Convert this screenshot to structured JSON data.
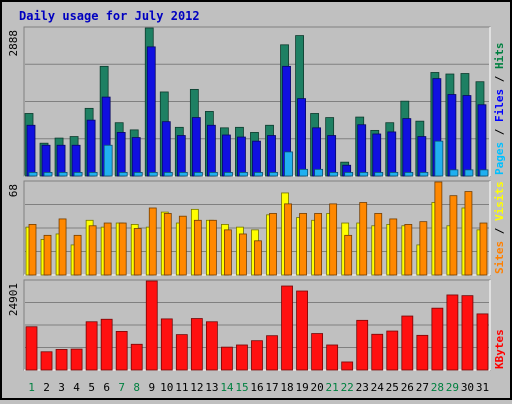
{
  "chart_data": {
    "title": "Daily usage for July 2012",
    "type": "bar",
    "days": [
      "1",
      "2",
      "3",
      "4",
      "5",
      "6",
      "7",
      "8",
      "9",
      "10",
      "11",
      "12",
      "13",
      "14",
      "15",
      "16",
      "17",
      "18",
      "19",
      "20",
      "21",
      "22",
      "23",
      "24",
      "25",
      "26",
      "27",
      "28",
      "29",
      "30",
      "31"
    ],
    "weekend_days": [
      "1",
      "7",
      "8",
      "14",
      "15",
      "21",
      "22",
      "28",
      "29"
    ],
    "panels": [
      {
        "id": "pages-files-hits",
        "max_label": "2888",
        "ymax": 2888,
        "label_parts": [
          {
            "text": "Pages",
            "color": "#00c0ff"
          },
          {
            "text": " / ",
            "color": "#000000"
          },
          {
            "text": "Files",
            "color": "#0000ff"
          },
          {
            "text": " / ",
            "color": "#000000"
          },
          {
            "text": "Hits",
            "color": "#008040"
          }
        ],
        "series": [
          {
            "name": "Hits",
            "color": "#1e8063",
            "values": [
              1220,
              640,
              740,
              770,
              1320,
              2140,
              1040,
              900,
              2888,
              1640,
              950,
              1690,
              1260,
              940,
              950,
              850,
              990,
              2560,
              2740,
              1220,
              1140,
              270,
              1150,
              890,
              1040,
              1460,
              1070,
              2020,
              1990,
              2000,
              1840
            ]
          },
          {
            "name": "Files",
            "color": "#1010e0",
            "values": [
              990,
              600,
              600,
              600,
              1090,
              1540,
              850,
              750,
              2520,
              1060,
              790,
              1140,
              990,
              800,
              760,
              680,
              790,
              2140,
              1510,
              940,
              790,
              210,
              1000,
              820,
              860,
              1120,
              770,
              1900,
              1590,
              1570,
              1390
            ]
          },
          {
            "name": "Pages",
            "color": "#20b0f0",
            "values": [
              70,
              70,
              70,
              70,
              70,
              600,
              70,
              70,
              70,
              70,
              70,
              70,
              70,
              70,
              70,
              70,
              70,
              470,
              130,
              130,
              70,
              70,
              70,
              70,
              70,
              70,
              70,
              680,
              120,
              120,
              120
            ]
          }
        ]
      },
      {
        "id": "sites-visits",
        "max_label": "68",
        "ymax": 68,
        "label_parts": [
          {
            "text": "Sites",
            "color": "#ff8000"
          },
          {
            "text": " / ",
            "color": "#000000"
          },
          {
            "text": "Visits",
            "color": "#ffff00"
          }
        ],
        "series": [
          {
            "name": "Visits",
            "color": "#ffff00",
            "values": [
              35,
              26,
              30,
              22,
              40,
              35,
              38,
              37,
              35,
              46,
              38,
              48,
              40,
              37,
              35,
              33,
              44,
              60,
              42,
              40,
              45,
              38,
              38,
              36,
              37,
              36,
              22,
              53,
              36,
              49,
              33
            ]
          },
          {
            "name": "Sites",
            "color": "#ff8800",
            "values": [
              37,
              29,
              41,
              29,
              36,
              38,
              38,
              34,
              49,
              45,
              43,
              40,
              40,
              33,
              30,
              25,
              45,
              52,
              45,
              45,
              52,
              29,
              53,
              45,
              41,
              37,
              39,
              68,
              58,
              61,
              38
            ]
          }
        ]
      },
      {
        "id": "kbytes",
        "max_label": "24901",
        "ymax": 24901,
        "label_parts": [
          {
            "text": "KBytes",
            "color": "#ff0000"
          }
        ],
        "series": [
          {
            "name": "KBytes",
            "color": "#ff1010",
            "values": [
              12100,
              5100,
              5750,
              5850,
              13500,
              14200,
              10800,
              7200,
              24901,
              14300,
              9900,
              14400,
              13500,
              6400,
              7000,
              8200,
              9600,
              23500,
              22100,
              10200,
              7000,
              2250,
              13900,
              10000,
              10900,
              15100,
              9700,
              17300,
              21000,
              20800,
              15700
            ]
          }
        ]
      }
    ]
  }
}
